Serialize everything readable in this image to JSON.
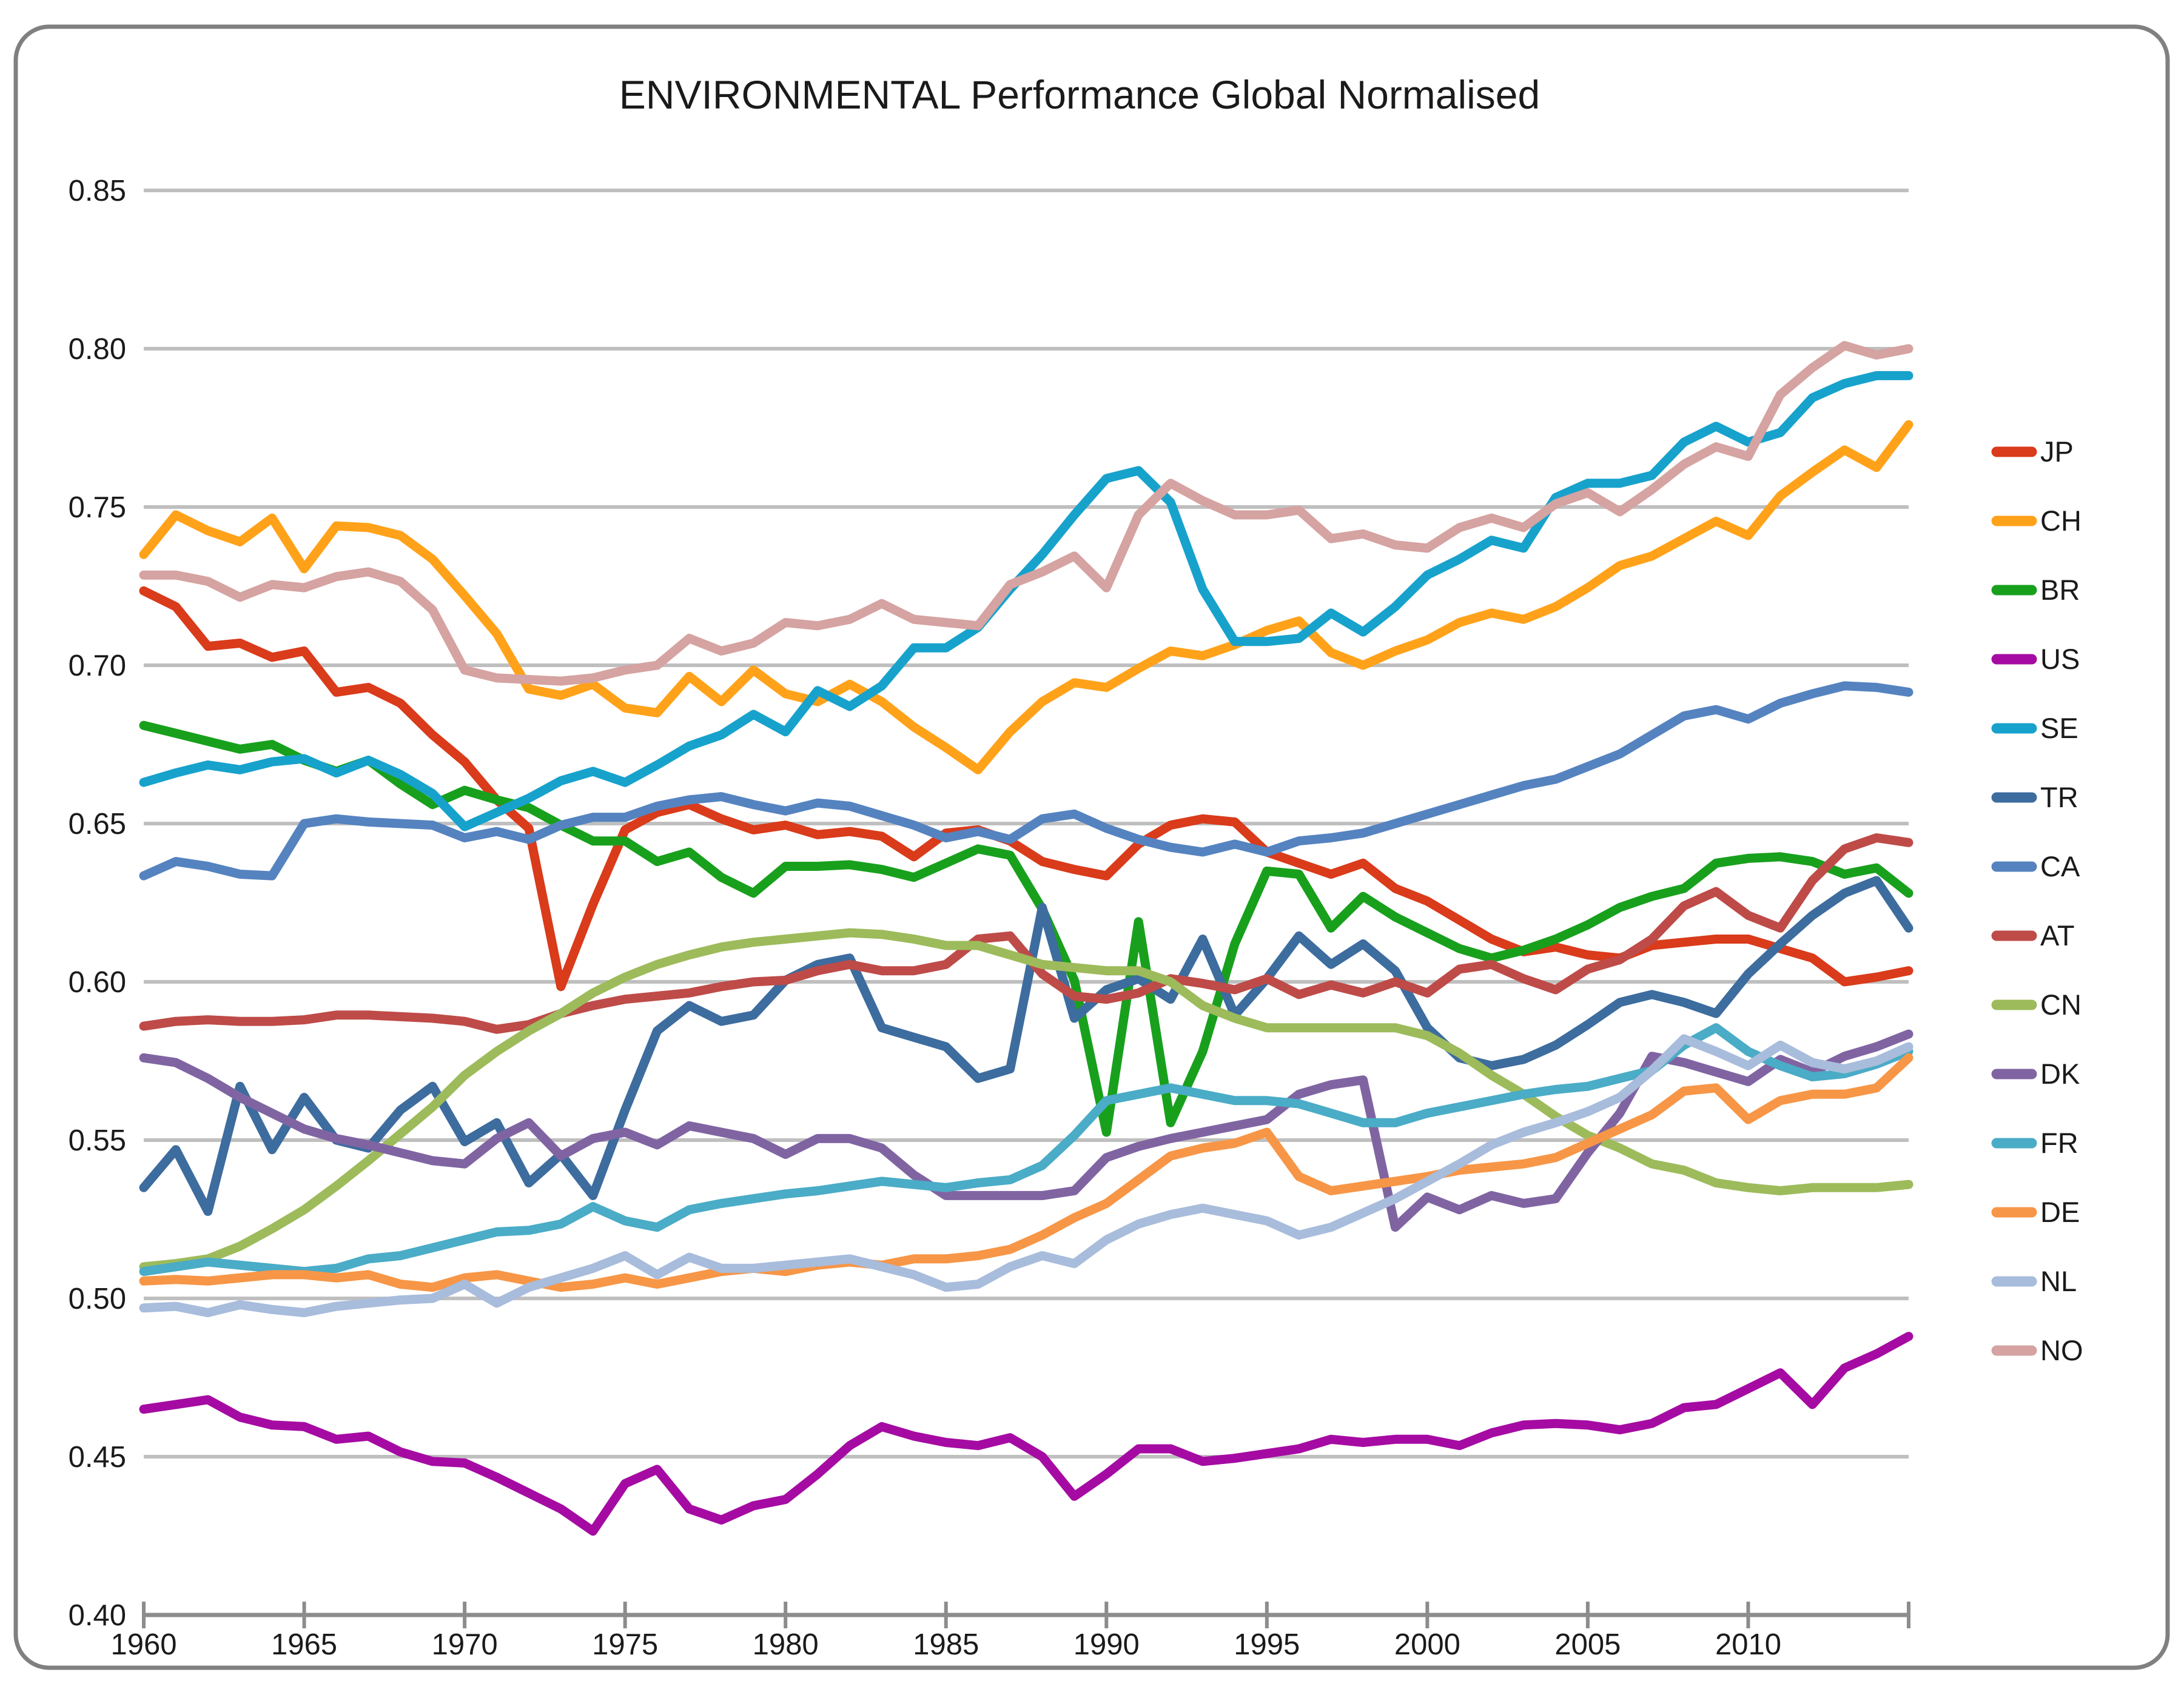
{
  "title": "ENVIRONMENTAL Performance Global Normalised",
  "chart_data": {
    "type": "line",
    "grid": true,
    "legend_position": "right",
    "ylim": [
      0.4,
      0.85
    ],
    "ytick_step": 0.05,
    "ytick_labels": [
      "0.85",
      "0.80",
      "0.75",
      "0.70",
      "0.65",
      "0.60",
      "0.55",
      "0.50",
      "0.45",
      "0.40"
    ],
    "x_axis_tick_years": [
      1960,
      1965,
      1970,
      1975,
      1980,
      1985,
      1990,
      1995,
      2000,
      2005,
      2010,
      2015
    ],
    "x_axis_labels": [
      "1960",
      "1965",
      "1970",
      "1975",
      "1980",
      "1985",
      "1990",
      "1995",
      "2000",
      "2005",
      "2010"
    ],
    "years": [
      1960,
      1961,
      1962,
      1963,
      1964,
      1965,
      1966,
      1967,
      1968,
      1969,
      1970,
      1971,
      1972,
      1973,
      1974,
      1975,
      1976,
      1977,
      1978,
      1979,
      1980,
      1981,
      1982,
      1983,
      1984,
      1985,
      1986,
      1987,
      1988,
      1989,
      1990,
      1991,
      1992,
      1993,
      1994,
      1995,
      1996,
      1997,
      1998,
      1999,
      2000,
      2001,
      2002,
      2003,
      2004,
      2005,
      2006,
      2007,
      2008,
      2009,
      2010,
      2011,
      2012,
      2013,
      2014,
      2015
    ],
    "series": [
      {
        "name": "JP",
        "color": "#D93B1B",
        "values": [
          0.7235,
          0.7185,
          0.706,
          0.707,
          0.7025,
          0.7045,
          0.6915,
          0.693,
          0.688,
          0.678,
          0.6695,
          0.6575,
          0.6485,
          0.5985,
          0.6245,
          0.648,
          0.6535,
          0.656,
          0.6515,
          0.648,
          0.6495,
          0.6465,
          0.6475,
          0.646,
          0.6395,
          0.647,
          0.648,
          0.6445,
          0.638,
          0.6355,
          0.6335,
          0.6435,
          0.6495,
          0.6515,
          0.6505,
          0.641,
          0.6375,
          0.634,
          0.6375,
          0.6295,
          0.6255,
          0.6195,
          0.6135,
          0.6095,
          0.611,
          0.6085,
          0.6075,
          0.6115,
          0.6125,
          0.6135,
          0.6135,
          0.6105,
          0.6075,
          0.6,
          0.6015,
          0.6035
        ]
      },
      {
        "name": "CH",
        "color": "#FFA21A",
        "values": [
          0.735,
          0.7475,
          0.7425,
          0.739,
          0.7465,
          0.7305,
          0.744,
          0.7435,
          0.741,
          0.7335,
          0.722,
          0.71,
          0.6925,
          0.6905,
          0.694,
          0.6865,
          0.685,
          0.6965,
          0.6885,
          0.6985,
          0.691,
          0.6885,
          0.694,
          0.6885,
          0.6805,
          0.674,
          0.667,
          0.679,
          0.6885,
          0.6945,
          0.693,
          0.699,
          0.7045,
          0.703,
          0.7065,
          0.711,
          0.714,
          0.704,
          0.7,
          0.7045,
          0.708,
          0.7135,
          0.7165,
          0.7145,
          0.7185,
          0.7245,
          0.7315,
          0.7345,
          0.74,
          0.7455,
          0.741,
          0.7535,
          0.761,
          0.768,
          0.7625,
          0.776
        ]
      },
      {
        "name": "BR",
        "color": "#18A01D",
        "values": [
          0.681,
          0.6785,
          0.676,
          0.6735,
          0.675,
          0.67,
          0.6665,
          0.67,
          0.6625,
          0.656,
          0.6605,
          0.6575,
          0.655,
          0.6495,
          0.6445,
          0.6445,
          0.638,
          0.641,
          0.633,
          0.628,
          0.6365,
          0.6365,
          0.637,
          0.6355,
          0.633,
          0.6375,
          0.642,
          0.64,
          0.623,
          0.6005,
          0.5525,
          0.619,
          0.5555,
          0.578,
          0.612,
          0.635,
          0.634,
          0.617,
          0.627,
          0.6205,
          0.6155,
          0.6105,
          0.6075,
          0.61,
          0.6135,
          0.618,
          0.6235,
          0.627,
          0.6295,
          0.6375,
          0.639,
          0.6395,
          0.638,
          0.634,
          0.636,
          0.628
        ]
      },
      {
        "name": "US",
        "color": "#A50BA3",
        "values": [
          0.465,
          0.4665,
          0.468,
          0.4625,
          0.46,
          0.4595,
          0.4555,
          0.4565,
          0.4515,
          0.4485,
          0.448,
          0.4435,
          0.4385,
          0.4335,
          0.4265,
          0.4415,
          0.446,
          0.4335,
          0.43,
          0.4345,
          0.4365,
          0.4445,
          0.4535,
          0.4595,
          0.4565,
          0.4545,
          0.4535,
          0.456,
          0.45,
          0.4375,
          0.4445,
          0.4525,
          0.4525,
          0.4485,
          0.4495,
          0.451,
          0.4525,
          0.4555,
          0.4545,
          0.4555,
          0.4555,
          0.4535,
          0.4575,
          0.46,
          0.4605,
          0.46,
          0.4585,
          0.4605,
          0.4655,
          0.4665,
          0.4715,
          0.4765,
          0.4665,
          0.478,
          0.4825,
          0.488
        ]
      },
      {
        "name": "SE",
        "color": "#17A2CC",
        "values": [
          0.663,
          0.666,
          0.6685,
          0.667,
          0.6695,
          0.6705,
          0.666,
          0.67,
          0.6655,
          0.6595,
          0.649,
          0.6535,
          0.658,
          0.6635,
          0.6665,
          0.663,
          0.6685,
          0.6745,
          0.678,
          0.6845,
          0.679,
          0.692,
          0.687,
          0.6935,
          0.7055,
          0.7055,
          0.712,
          0.724,
          0.735,
          0.7475,
          0.759,
          0.7615,
          0.7515,
          0.724,
          0.7075,
          0.7075,
          0.7085,
          0.7165,
          0.7105,
          0.7185,
          0.7285,
          0.7335,
          0.7395,
          0.737,
          0.753,
          0.7575,
          0.7575,
          0.76,
          0.7705,
          0.7755,
          0.7705,
          0.7735,
          0.7845,
          0.789,
          0.7915,
          0.7915
        ]
      },
      {
        "name": "TR",
        "color": "#3D6C9E",
        "values": [
          0.535,
          0.547,
          0.5275,
          0.567,
          0.547,
          0.5635,
          0.55,
          0.5475,
          0.5595,
          0.567,
          0.5495,
          0.5555,
          0.5365,
          0.5455,
          0.5325,
          0.5595,
          0.5845,
          0.5925,
          0.5875,
          0.5895,
          0.6005,
          0.6055,
          0.6075,
          0.5855,
          0.5825,
          0.5795,
          0.5695,
          0.5725,
          0.6235,
          0.5885,
          0.5975,
          0.601,
          0.5945,
          0.6135,
          0.5895,
          0.601,
          0.6145,
          0.6055,
          0.612,
          0.6035,
          0.5855,
          0.576,
          0.5735,
          0.5755,
          0.58,
          0.5865,
          0.5935,
          0.596,
          0.5935,
          0.59,
          0.6025,
          0.612,
          0.621,
          0.628,
          0.632,
          0.617
        ]
      },
      {
        "name": "CA",
        "color": "#5583C0",
        "values": [
          0.6335,
          0.638,
          0.6365,
          0.634,
          0.6335,
          0.65,
          0.6515,
          0.6505,
          0.65,
          0.6495,
          0.6455,
          0.6475,
          0.645,
          0.6495,
          0.652,
          0.652,
          0.6555,
          0.6575,
          0.6585,
          0.656,
          0.654,
          0.6565,
          0.6555,
          0.6525,
          0.6495,
          0.6455,
          0.6475,
          0.645,
          0.6515,
          0.653,
          0.6485,
          0.645,
          0.6425,
          0.641,
          0.6435,
          0.641,
          0.6445,
          0.6455,
          0.647,
          0.65,
          0.653,
          0.656,
          0.659,
          0.662,
          0.664,
          0.668,
          0.672,
          0.678,
          0.684,
          0.686,
          0.683,
          0.688,
          0.691,
          0.6935,
          0.693,
          0.6915
        ]
      },
      {
        "name": "AT",
        "color": "#BE4B48",
        "values": [
          0.586,
          0.5875,
          0.588,
          0.5875,
          0.5875,
          0.588,
          0.5895,
          0.5895,
          0.589,
          0.5885,
          0.5875,
          0.585,
          0.5865,
          0.59,
          0.5925,
          0.5945,
          0.5955,
          0.5965,
          0.5985,
          0.6,
          0.6005,
          0.6035,
          0.6055,
          0.6035,
          0.6035,
          0.6055,
          0.6135,
          0.6145,
          0.6025,
          0.5955,
          0.5945,
          0.5965,
          0.601,
          0.5995,
          0.5975,
          0.601,
          0.596,
          0.599,
          0.5965,
          0.6,
          0.5965,
          0.604,
          0.6055,
          0.601,
          0.5975,
          0.604,
          0.607,
          0.6135,
          0.624,
          0.6285,
          0.621,
          0.617,
          0.632,
          0.642,
          0.6455,
          0.644
        ]
      },
      {
        "name": "CN",
        "color": "#9DBB5B",
        "values": [
          0.51,
          0.511,
          0.5125,
          0.5165,
          0.522,
          0.528,
          0.5355,
          0.5435,
          0.552,
          0.5605,
          0.5705,
          0.578,
          0.5845,
          0.59,
          0.5965,
          0.6015,
          0.6055,
          0.6085,
          0.611,
          0.6125,
          0.6135,
          0.6145,
          0.6155,
          0.615,
          0.6135,
          0.6115,
          0.6115,
          0.6085,
          0.6055,
          0.6045,
          0.6035,
          0.6035,
          0.6,
          0.5925,
          0.5885,
          0.5855,
          0.5855,
          0.5855,
          0.5855,
          0.5855,
          0.583,
          0.5775,
          0.5705,
          0.5645,
          0.5575,
          0.5515,
          0.5475,
          0.5425,
          0.5405,
          0.5365,
          0.535,
          0.534,
          0.535,
          0.535,
          0.535,
          0.536
        ]
      },
      {
        "name": "DK",
        "color": "#8064A2",
        "values": [
          0.576,
          0.5745,
          0.5695,
          0.5635,
          0.5585,
          0.5535,
          0.5505,
          0.5485,
          0.546,
          0.5435,
          0.5425,
          0.5505,
          0.5555,
          0.545,
          0.5505,
          0.5525,
          0.5485,
          0.5545,
          0.5525,
          0.5505,
          0.5455,
          0.5505,
          0.5505,
          0.5475,
          0.539,
          0.5325,
          0.5325,
          0.5325,
          0.5325,
          0.534,
          0.5445,
          0.548,
          0.5505,
          0.5525,
          0.5545,
          0.5565,
          0.5645,
          0.5675,
          0.569,
          0.5225,
          0.532,
          0.528,
          0.5325,
          0.53,
          0.5315,
          0.546,
          0.5585,
          0.5765,
          0.5745,
          0.5715,
          0.5685,
          0.5755,
          0.5715,
          0.5765,
          0.5795,
          0.5835
        ]
      },
      {
        "name": "FR",
        "color": "#4AACC6",
        "values": [
          0.5085,
          0.51,
          0.5115,
          0.5105,
          0.5095,
          0.5085,
          0.5095,
          0.5125,
          0.5135,
          0.516,
          0.5185,
          0.521,
          0.5215,
          0.5235,
          0.529,
          0.5245,
          0.5225,
          0.528,
          0.53,
          0.5315,
          0.533,
          0.534,
          0.5355,
          0.537,
          0.536,
          0.535,
          0.5365,
          0.5375,
          0.542,
          0.5515,
          0.5625,
          0.5645,
          0.5665,
          0.5645,
          0.5625,
          0.5625,
          0.5615,
          0.5585,
          0.5555,
          0.5555,
          0.5585,
          0.5605,
          0.5625,
          0.5645,
          0.566,
          0.567,
          0.5695,
          0.572,
          0.58,
          0.5855,
          0.578,
          0.5735,
          0.57,
          0.571,
          0.574,
          0.578
        ]
      },
      {
        "name": "DE",
        "color": "#F79646",
        "values": [
          0.5055,
          0.506,
          0.5055,
          0.5065,
          0.5075,
          0.5075,
          0.5065,
          0.5075,
          0.5045,
          0.5035,
          0.5065,
          0.5075,
          0.5055,
          0.5035,
          0.5045,
          0.5065,
          0.5045,
          0.5065,
          0.5085,
          0.5095,
          0.5085,
          0.5105,
          0.5115,
          0.5105,
          0.5125,
          0.5125,
          0.5135,
          0.5155,
          0.52,
          0.5255,
          0.53,
          0.5375,
          0.545,
          0.5475,
          0.549,
          0.5525,
          0.5385,
          0.534,
          0.5355,
          0.537,
          0.5385,
          0.5405,
          0.5415,
          0.5425,
          0.5445,
          0.549,
          0.5535,
          0.558,
          0.5655,
          0.5665,
          0.5565,
          0.5625,
          0.5645,
          0.5645,
          0.5665,
          0.576
        ]
      },
      {
        "name": "NL",
        "color": "#A8BCDC",
        "values": [
          0.497,
          0.4975,
          0.4955,
          0.498,
          0.4965,
          0.4955,
          0.4975,
          0.4985,
          0.4995,
          0.5,
          0.5045,
          0.4985,
          0.5035,
          0.5065,
          0.5095,
          0.5135,
          0.5075,
          0.513,
          0.5095,
          0.5095,
          0.5105,
          0.5115,
          0.5125,
          0.51,
          0.5075,
          0.5035,
          0.5045,
          0.51,
          0.5135,
          0.511,
          0.5185,
          0.5235,
          0.5265,
          0.5285,
          0.5265,
          0.5245,
          0.52,
          0.5225,
          0.527,
          0.5315,
          0.537,
          0.5425,
          0.5485,
          0.5525,
          0.5555,
          0.559,
          0.5635,
          0.572,
          0.582,
          0.578,
          0.5735,
          0.58,
          0.5745,
          0.5725,
          0.575,
          0.5795
        ]
      },
      {
        "name": "NO",
        "color": "#D5A3A1",
        "values": [
          0.7285,
          0.7285,
          0.7265,
          0.7215,
          0.7255,
          0.7245,
          0.728,
          0.7295,
          0.7265,
          0.7175,
          0.6985,
          0.696,
          0.6955,
          0.695,
          0.696,
          0.6985,
          0.7,
          0.7085,
          0.7045,
          0.707,
          0.7135,
          0.7125,
          0.7145,
          0.7195,
          0.7145,
          0.7135,
          0.7125,
          0.7255,
          0.7295,
          0.7345,
          0.7245,
          0.7475,
          0.7575,
          0.752,
          0.7475,
          0.7475,
          0.749,
          0.74,
          0.7415,
          0.738,
          0.737,
          0.7435,
          0.7465,
          0.7435,
          0.751,
          0.7545,
          0.7485,
          0.7555,
          0.7635,
          0.769,
          0.766,
          0.7855,
          0.794,
          0.801,
          0.798,
          0.8
        ]
      }
    ]
  },
  "style_colors": {
    "gridline": "#BFBFBF",
    "axis": "#8C8C8C",
    "border": "#808080",
    "text": "#1A1A1A"
  }
}
